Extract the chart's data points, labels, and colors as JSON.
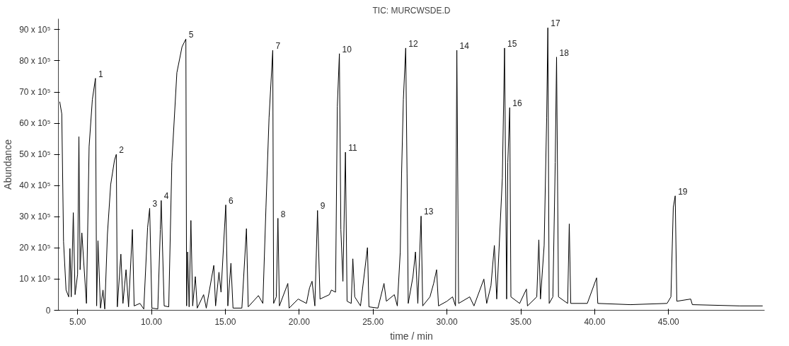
{
  "chart_data": {
    "type": "line",
    "title": "TIC: MURCWSDE.D",
    "xlabel": "time / min",
    "ylabel": "Abundance",
    "xlim": [
      3.7,
      51.5
    ],
    "ylim": [
      0,
      9350000
    ],
    "xticks": [
      {
        "value": 5,
        "label": "5.00"
      },
      {
        "value": 10,
        "label": "10.00"
      },
      {
        "value": 15,
        "label": "15.00"
      },
      {
        "value": 20,
        "label": "20.00"
      },
      {
        "value": 25,
        "label": "25.00"
      },
      {
        "value": 30,
        "label": "30.00"
      },
      {
        "value": 35,
        "label": "35.00"
      },
      {
        "value": 40,
        "label": "40.00"
      },
      {
        "value": 45,
        "label": "45.00"
      }
    ],
    "yticks": [
      0,
      {
        "value": 1000000,
        "label": "10 x 10⁵"
      },
      {
        "value": 2000000,
        "label": "20 x 10⁵"
      },
      {
        "value": 3000000,
        "label": "30 x 10⁵"
      },
      {
        "value": 4000000,
        "label": "40 x 10⁵"
      },
      {
        "value": 5000000,
        "label": "50 x 10⁵"
      },
      {
        "value": 6000000,
        "label": "60 x 10⁵"
      },
      {
        "value": 7000000,
        "label": "70 x 10⁵"
      },
      {
        "value": 8000000,
        "label": "80 x 10⁵"
      },
      {
        "value": 9000000,
        "label": "90 x 10⁵"
      }
    ],
    "grid": false,
    "marker": "none",
    "line_style": "solid",
    "series": [
      {
        "color": "#000000",
        "x": [
          3.79,
          3.93,
          4.05,
          4.22,
          4.4,
          4.48,
          4.57,
          4.71,
          4.83,
          5.0,
          5.09,
          5.17,
          5.29,
          5.43,
          5.6,
          5.78,
          6.0,
          6.21,
          6.29,
          6.38,
          6.55,
          6.72,
          6.84,
          7.02,
          7.24,
          7.5,
          7.62,
          7.69,
          7.93,
          8.07,
          8.28,
          8.45,
          8.71,
          8.83,
          9.22,
          9.48,
          9.74,
          9.88,
          10.03,
          10.43,
          10.6,
          10.66,
          10.86,
          11.17,
          11.38,
          11.72,
          12.07,
          12.33,
          12.38,
          12.45,
          12.55,
          12.67,
          12.79,
          12.97,
          13.1,
          13.53,
          13.71,
          14.22,
          14.34,
          14.57,
          14.71,
          15.03,
          15.17,
          15.38,
          15.52,
          16.12,
          16.43,
          16.55,
          17.24,
          17.54,
          17.75,
          17.96,
          18.21,
          18.27,
          18.45,
          18.56,
          18.66,
          19.23,
          19.32,
          19.93,
          20.49,
          20.7,
          20.87,
          21.06,
          21.24,
          21.41,
          22.04,
          22.18,
          22.46,
          22.58,
          22.72,
          22.82,
          22.96,
          23.13,
          23.24,
          23.52,
          23.63,
          23.76,
          24.15,
          24.62,
          24.72,
          25.33,
          25.74,
          25.9,
          26.44,
          26.64,
          26.84,
          26.93,
          27.05,
          27.21,
          27.3,
          27.38,
          27.7,
          27.87,
          28.03,
          28.25,
          28.36,
          28.85,
          29.1,
          29.3,
          29.43,
          30.0,
          30.38,
          30.58,
          30.67,
          30.79,
          31.54,
          31.83,
          32.5,
          32.69,
          32.98,
          33.21,
          33.37,
          33.75,
          33.9,
          34.04,
          34.12,
          34.25,
          34.33,
          34.92,
          35.38,
          35.45,
          36.08,
          36.22,
          36.33,
          36.58,
          36.75,
          36.83,
          36.92,
          37.17,
          37.33,
          37.42,
          37.55,
          38.17,
          38.28,
          38.38,
          39.5,
          40.13,
          40.21,
          42.42,
          44.9,
          45.16,
          45.32,
          45.45,
          45.56,
          46.5,
          46.61,
          49.84,
          51.37
        ],
        "values": [
          6690000,
          6300000,
          2200000,
          650000,
          430000,
          1980000,
          430000,
          3130000,
          500000,
          1150000,
          5570000,
          1300000,
          2480000,
          1440000,
          220000,
          5250000,
          6760000,
          7440000,
          140000,
          2230000,
          70000,
          650000,
          40000,
          2440000,
          4030000,
          4820000,
          5000000,
          110000,
          1800000,
          220000,
          1300000,
          110000,
          2590000,
          140000,
          220000,
          40000,
          2660000,
          3270000,
          70000,
          40000,
          2590000,
          3520000,
          140000,
          110000,
          4740000,
          7620000,
          8450000,
          8700000,
          140000,
          1870000,
          110000,
          2880000,
          140000,
          1080000,
          70000,
          500000,
          70000,
          1440000,
          140000,
          1220000,
          580000,
          3380000,
          140000,
          1510000,
          70000,
          70000,
          2620000,
          110000,
          470000,
          220000,
          3300000,
          6180000,
          8340000,
          220000,
          430000,
          2950000,
          140000,
          860000,
          70000,
          360000,
          220000,
          720000,
          930000,
          140000,
          3200000,
          360000,
          500000,
          650000,
          580000,
          6540000,
          8230000,
          2590000,
          930000,
          5070000,
          290000,
          220000,
          1650000,
          430000,
          140000,
          2010000,
          110000,
          70000,
          860000,
          290000,
          500000,
          140000,
          1870000,
          4390000,
          6760000,
          8410000,
          4390000,
          220000,
          1080000,
          1870000,
          220000,
          3020000,
          140000,
          430000,
          860000,
          1300000,
          140000,
          290000,
          430000,
          140000,
          8340000,
          220000,
          430000,
          140000,
          1000000,
          220000,
          790000,
          2080000,
          360000,
          4240000,
          8410000,
          360000,
          4740000,
          6500000,
          430000,
          220000,
          680000,
          140000,
          430000,
          2260000,
          360000,
          2080000,
          6180000,
          9060000,
          220000,
          430000,
          4740000,
          8120000,
          430000,
          220000,
          2770000,
          220000,
          220000,
          1040000,
          220000,
          180000,
          220000,
          430000,
          3300000,
          3670000,
          290000,
          360000,
          180000,
          140000,
          140000
        ]
      }
    ],
    "annotations": [
      {
        "text": "1",
        "x": 6.21,
        "y": 7440000
      },
      {
        "text": "2",
        "x": 7.62,
        "y": 5000000
      },
      {
        "text": "3",
        "x": 9.88,
        "y": 3270000
      },
      {
        "text": "4",
        "x": 10.66,
        "y": 3520000
      },
      {
        "text": "5",
        "x": 12.33,
        "y": 8700000
      },
      {
        "text": "6",
        "x": 15.03,
        "y": 3380000
      },
      {
        "text": "7",
        "x": 18.21,
        "y": 8340000
      },
      {
        "text": "8",
        "x": 18.56,
        "y": 2950000
      },
      {
        "text": "9",
        "x": 21.24,
        "y": 3200000
      },
      {
        "text": "10",
        "x": 22.72,
        "y": 8230000
      },
      {
        "text": "11",
        "x": 23.13,
        "y": 5070000
      },
      {
        "text": "12",
        "x": 27.21,
        "y": 8410000
      },
      {
        "text": "13",
        "x": 28.25,
        "y": 3020000
      },
      {
        "text": "14",
        "x": 30.67,
        "y": 8340000
      },
      {
        "text": "15",
        "x": 33.9,
        "y": 8410000
      },
      {
        "text": "16",
        "x": 34.25,
        "y": 6500000
      },
      {
        "text": "17",
        "x": 36.83,
        "y": 9060000
      },
      {
        "text": "18",
        "x": 37.42,
        "y": 8120000
      },
      {
        "text": "19",
        "x": 45.45,
        "y": 3670000
      }
    ]
  }
}
